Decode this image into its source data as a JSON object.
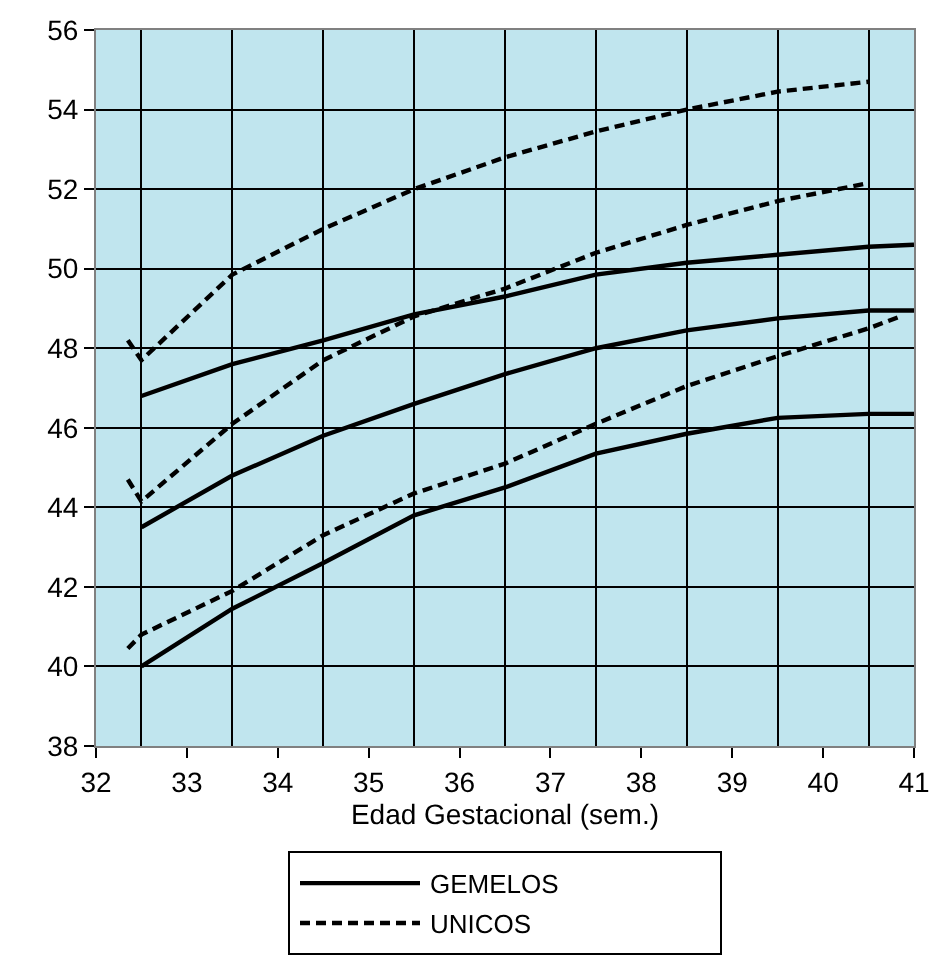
{
  "chart_data": {
    "type": "line",
    "xlabel": "Edad Gestacional (sem.)",
    "xlim": [
      32,
      41
    ],
    "xticks": [
      32,
      33,
      34,
      35,
      36,
      37,
      38,
      39,
      40,
      41
    ],
    "ylim": [
      38,
      56
    ],
    "yticks": [
      38,
      40,
      42,
      44,
      46,
      48,
      50,
      52,
      54,
      56
    ],
    "grid": true,
    "legend": "bottom",
    "marker": "none",
    "series": [
      {
        "name": "GEMELOS",
        "color": "#000000",
        "line_style": "solid",
        "x": [
          32.5,
          33.5,
          34.5,
          35.5,
          36.5,
          37.5,
          38.5,
          39.5,
          40.5,
          41
        ],
        "values": [
          46.8,
          47.6,
          48.2,
          48.85,
          49.3,
          49.85,
          50.15,
          50.35,
          50.55,
          50.6
        ]
      },
      {
        "color": "#000000",
        "line_style": "solid",
        "x": [
          32.5,
          33.5,
          34.5,
          35.5,
          36.5,
          37.5,
          38.5,
          39.5,
          40.5,
          41
        ],
        "values": [
          43.5,
          44.8,
          45.8,
          46.6,
          47.35,
          48.0,
          48.45,
          48.75,
          48.95,
          48.95
        ]
      },
      {
        "color": "#000000",
        "line_style": "solid",
        "x": [
          32.5,
          33.5,
          34.5,
          35.5,
          36.5,
          37.5,
          38.5,
          39.5,
          40.5,
          41
        ],
        "values": [
          40.0,
          41.45,
          42.6,
          43.8,
          44.5,
          45.35,
          45.85,
          46.25,
          46.35,
          46.35
        ]
      },
      {
        "name": "UNICOS",
        "color": "#000000",
        "line_style": "dashed",
        "x": [
          32.35,
          32.5,
          33.5,
          34.5,
          35.5,
          36.5,
          37.5,
          38.5,
          39.5,
          40.5
        ],
        "values": [
          48.2,
          47.7,
          49.85,
          51.0,
          52.0,
          52.8,
          53.45,
          54.0,
          54.45,
          54.7
        ]
      },
      {
        "color": "#000000",
        "line_style": "dashed",
        "x": [
          32.35,
          32.5,
          33.5,
          34.5,
          35.5,
          36.5,
          37.5,
          38.5,
          39.5,
          40.5
        ],
        "values": [
          44.7,
          44.15,
          46.1,
          47.7,
          48.8,
          49.5,
          50.4,
          51.1,
          51.7,
          52.15
        ]
      },
      {
        "color": "#000000",
        "line_style": "dashed",
        "x": [
          32.35,
          32.5,
          33.5,
          34.5,
          35.5,
          36.5,
          37.5,
          38.5,
          39.5,
          40.5,
          40.85
        ],
        "values": [
          40.45,
          40.8,
          41.9,
          43.3,
          44.35,
          45.1,
          46.1,
          47.05,
          47.8,
          48.5,
          48.8
        ]
      }
    ]
  }
}
